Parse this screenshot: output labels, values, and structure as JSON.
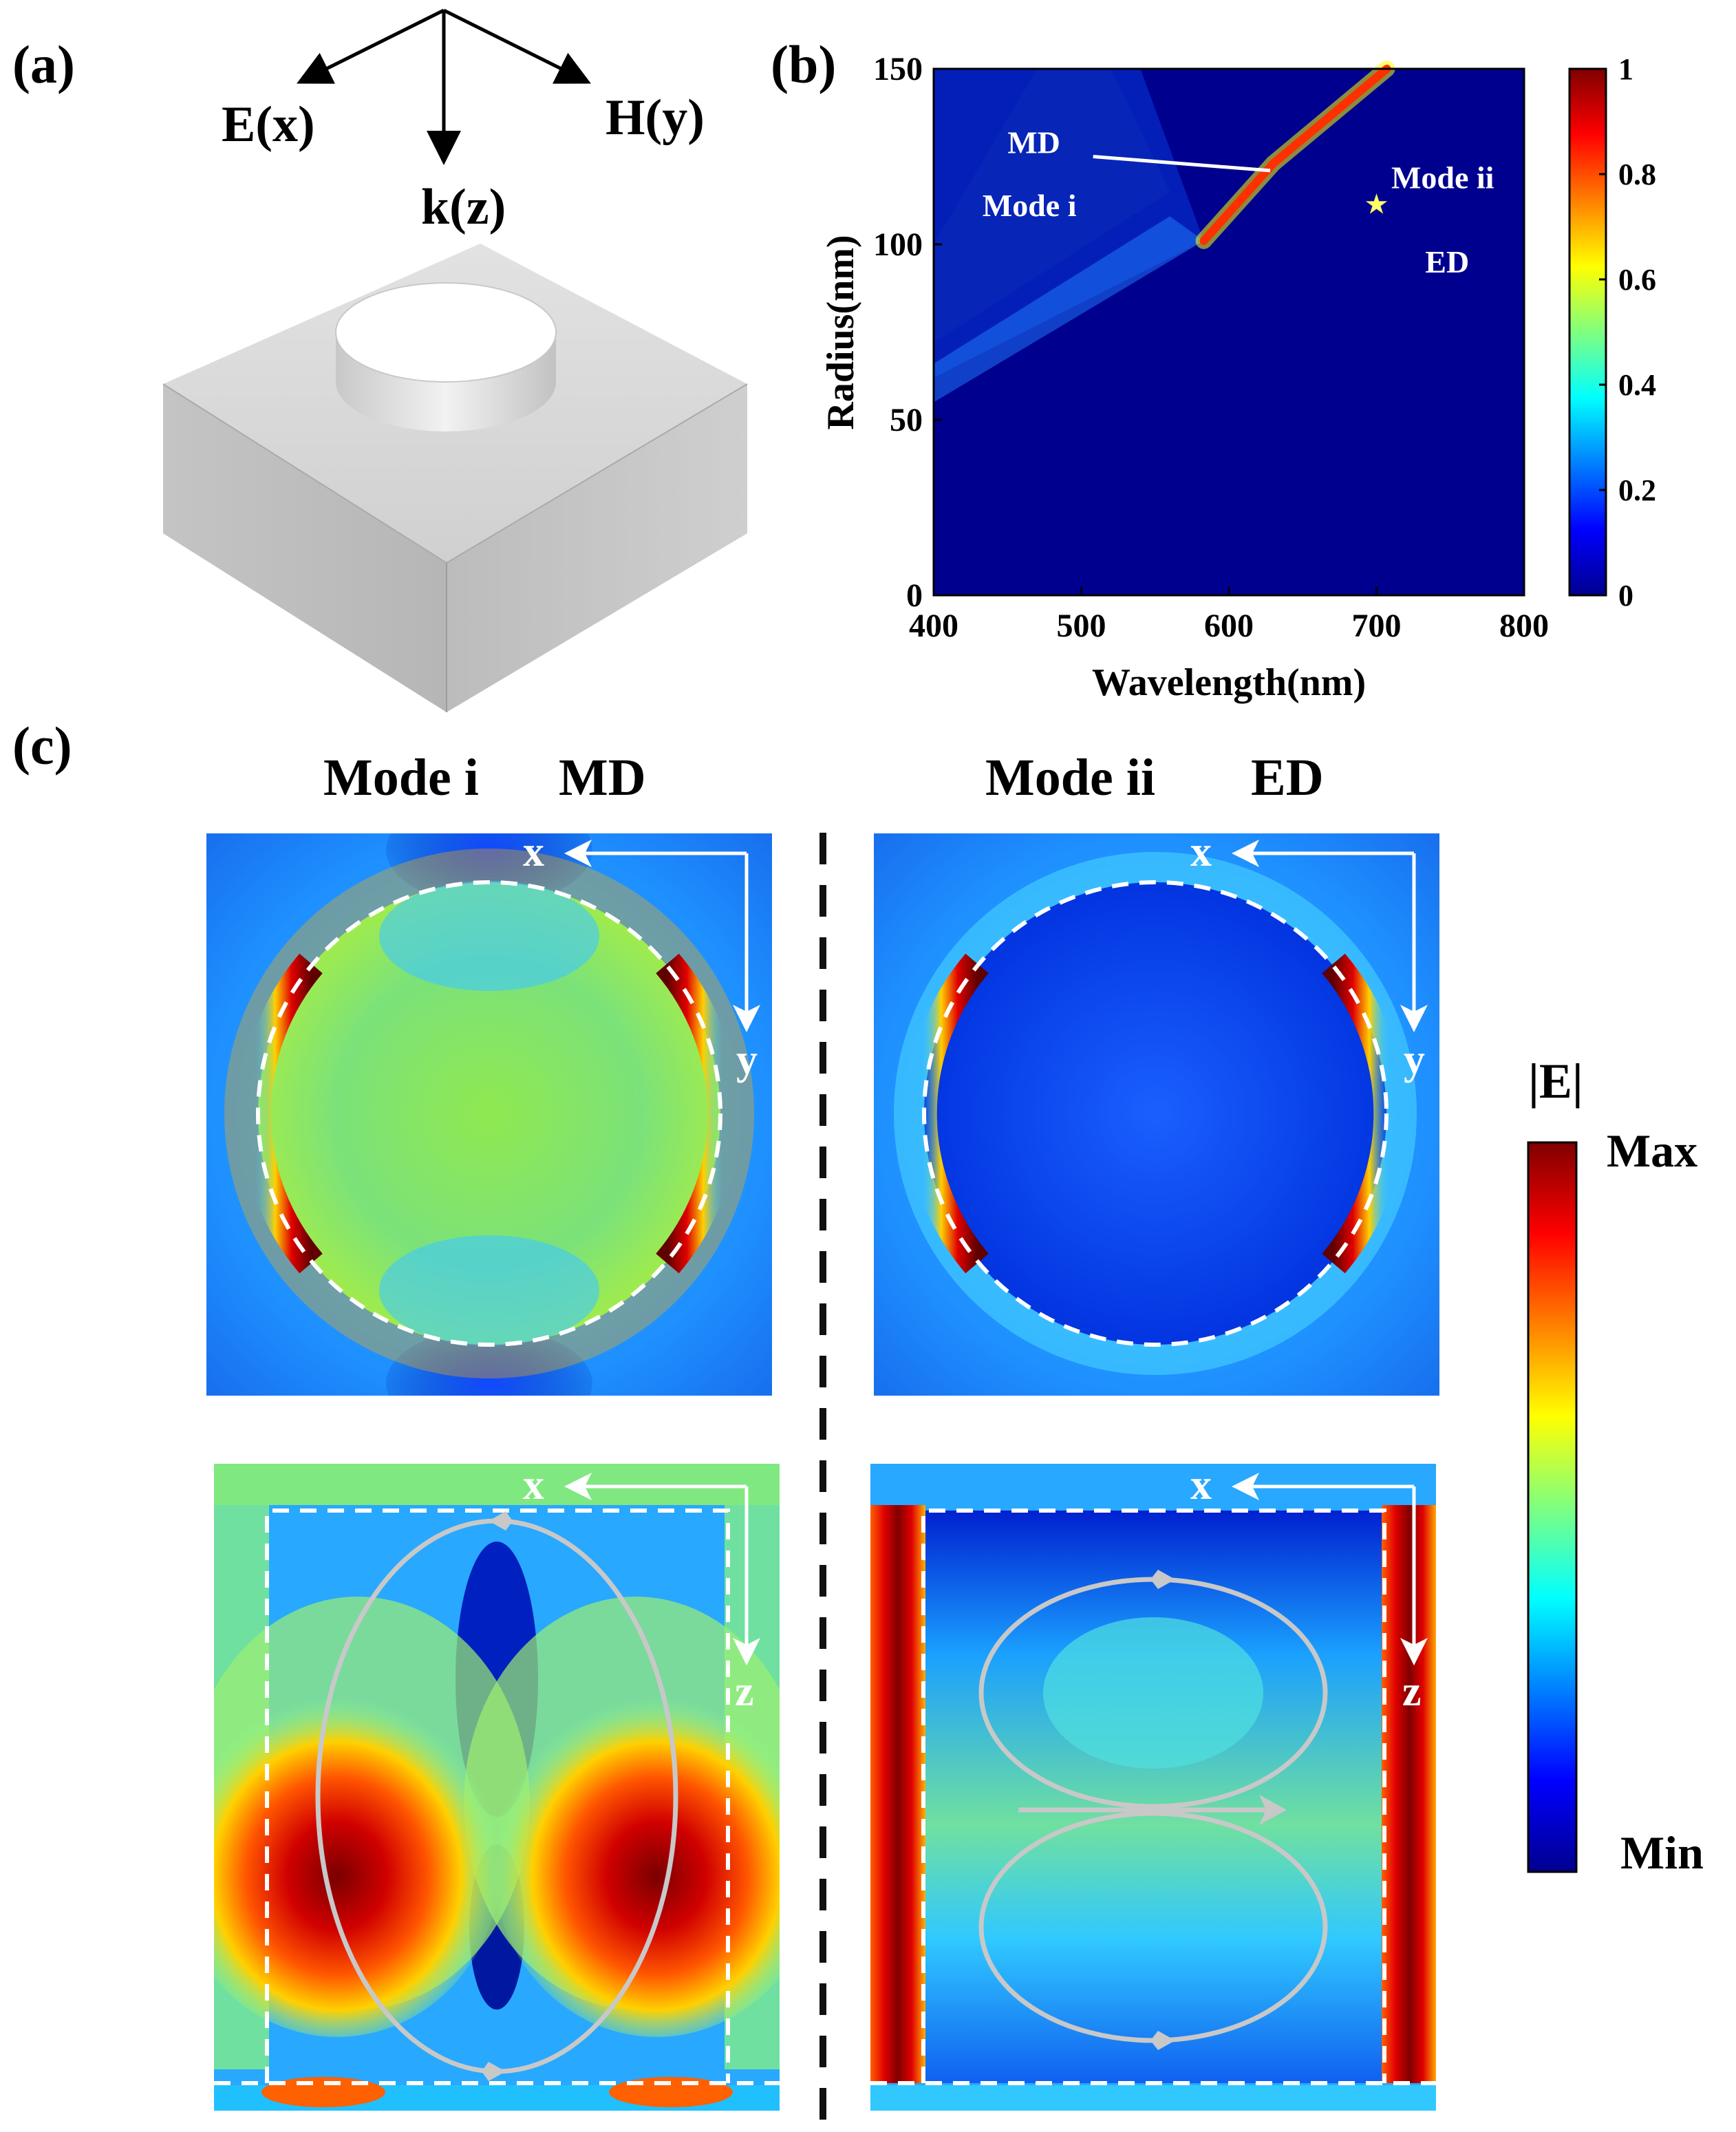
{
  "panel_labels": {
    "a": "(a)",
    "b": "(b)",
    "c": "(c)"
  },
  "panel_a": {
    "axes": {
      "e": "E(x)",
      "h": "H(y)",
      "k": "k(z)"
    },
    "illustration": "disk on substrate"
  },
  "chart_data": {
    "type": "heatmap",
    "title": "",
    "xlabel": "Wavelength(nm)",
    "ylabel": "Radius(nm)",
    "xlim": [
      400,
      800
    ],
    "ylim": [
      0,
      150
    ],
    "xticks": [
      "400",
      "500",
      "600",
      "700",
      "800"
    ],
    "yticks": [
      "0",
      "50",
      "100",
      "150"
    ],
    "colorbar": {
      "min": 0,
      "max": 1,
      "ticks": [
        "0",
        "0.2",
        "0.4",
        "0.6",
        "0.8",
        "1"
      ]
    },
    "md_line": [
      {
        "x": 583,
        "y": 101
      },
      {
        "x": 630,
        "y": 123
      },
      {
        "x": 707,
        "y": 150
      }
    ],
    "annotations": {
      "md": "MD",
      "mode_i": "Mode i",
      "mode_ii": "Mode ii",
      "ed": "ED",
      "mode_ii_point": {
        "x": 700,
        "y": 111
      }
    }
  },
  "panel_c": {
    "left_title": {
      "mode": "Mode i",
      "type": "MD"
    },
    "right_title": {
      "mode": "Mode ii",
      "type": "ED"
    },
    "axis_labels": {
      "x": "x",
      "y": "y",
      "z": "z"
    },
    "colorbar": {
      "title": "|E|",
      "max": "Max",
      "min": "Min"
    }
  },
  "colors": {
    "jet_dark_blue": "#00008f",
    "jet_blue": "#0000ff",
    "jet_cyan": "#00ffff",
    "jet_yellow": "#ffff00",
    "jet_red": "#ff0000",
    "jet_dark_red": "#800000",
    "star": "#ffff66"
  }
}
